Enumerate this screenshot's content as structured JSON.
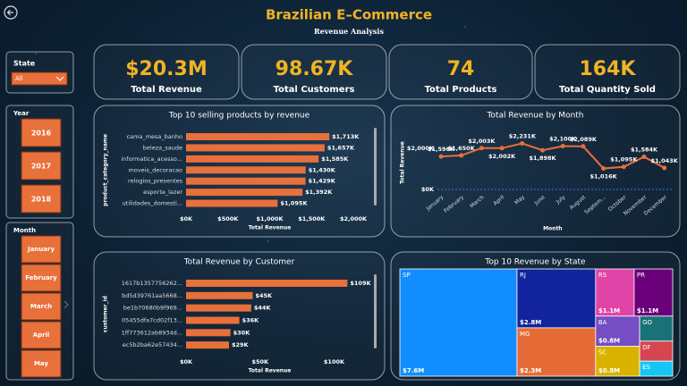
{
  "header": {
    "title": "Brazilian E–Commerce",
    "subtitle": "Revenue Analysis"
  },
  "kpis": [
    {
      "value": "$20.3M",
      "label": "Total Revenue"
    },
    {
      "value": "98.67K",
      "label": "Total Customers"
    },
    {
      "value": "74",
      "label": "Total Products"
    },
    {
      "value": "164K",
      "label": "Total Quantity Sold"
    }
  ],
  "slicers": {
    "state": {
      "label": "State",
      "selected": "All"
    },
    "year": {
      "label": "Year",
      "options": [
        "2016",
        "2017",
        "2018"
      ]
    },
    "month": {
      "label": "Month",
      "options": [
        "January",
        "February",
        "March",
        "April",
        "May"
      ]
    }
  },
  "chart_data": [
    {
      "type": "bar",
      "orientation": "horizontal",
      "title": "Top 10 selling products by revenue",
      "y_label": "product_category_name",
      "x_label": "Total Revenue",
      "color": "#e8703a",
      "categories": [
        "cama_mesa_banho",
        "beleza_saude",
        "informatica_acesso...",
        "moveis_decoracao",
        "relogios_presentes",
        "esporte_lazer",
        "utilidades_domesti..."
      ],
      "values": [
        1713000,
        1657000,
        1585000,
        1430000,
        1429000,
        1392000,
        1095000
      ],
      "value_labels": [
        "$1,713K",
        "$1,657K",
        "$1,585K",
        "$1,430K",
        "$1,429K",
        "$1,392K",
        "$1,095K"
      ],
      "xlim": [
        0,
        2000000
      ],
      "xticks": [
        {
          "value": 0,
          "label": "$0K"
        },
        {
          "value": 500000,
          "label": "$500K"
        },
        {
          "value": 1000000,
          "label": "$1,000K"
        },
        {
          "value": 1500000,
          "label": "$1,500K"
        },
        {
          "value": 2000000,
          "label": "$2,000K"
        }
      ]
    },
    {
      "type": "line",
      "title": "Total Revenue by Month",
      "y_label": "Total Revenue",
      "x_label": "Month",
      "color": "#e8703a",
      "categories": [
        "January",
        "February",
        "March",
        "April",
        "May",
        "June",
        "July",
        "August",
        "Septem...",
        "October",
        "November",
        "December"
      ],
      "values": [
        1596000,
        1650000,
        2003000,
        2002000,
        2231000,
        1898000,
        2100000,
        2089000,
        1016000,
        1095000,
        1584000,
        1043000
      ],
      "value_labels": [
        "$1,596K",
        "$1,650K",
        "$2,003K",
        "$2,002K",
        "$2,231K",
        "$1,898K",
        "$2,100K",
        "$2,089K",
        "$1,016K",
        "$1,095K",
        "$1,584K",
        "$1,043K"
      ],
      "ylim": [
        0,
        2600000
      ],
      "yticks": [
        {
          "value": 0,
          "label": "$0K"
        },
        {
          "value": 2000000,
          "label": "$2,000K"
        }
      ]
    },
    {
      "type": "bar",
      "orientation": "horizontal",
      "title": "Total Revenue by Customer",
      "y_label": "customer_id",
      "x_label": "Total Revenue",
      "color": "#e8703a",
      "categories": [
        "1617b1357756262...",
        "bd5d39761aa5668...",
        "be1b70680b9f969...",
        "05455dfa7cd02f13...",
        "1ff773612ab8934d...",
        "ec5b2ba62e57434..."
      ],
      "values": [
        109000,
        45000,
        44000,
        36000,
        30000,
        29000
      ],
      "value_labels": [
        "$109K",
        "$45K",
        "$44K",
        "$36K",
        "$30K",
        "$29K"
      ],
      "xlim": [
        0,
        113000
      ],
      "xticks": [
        {
          "value": 0,
          "label": "$0K"
        },
        {
          "value": 50000,
          "label": "$50K"
        },
        {
          "value": 100000,
          "label": "$100K"
        }
      ]
    },
    {
      "type": "treemap",
      "title": "Top 10 Revenue by State",
      "categories": [
        "SP",
        "RJ",
        "MG",
        "RS",
        "PR",
        "BA",
        "SC",
        "GO",
        "DF",
        "ES"
      ],
      "values": [
        7600000,
        2800000,
        2300000,
        1100000,
        1100000,
        800000,
        800000,
        500000,
        400000,
        300000
      ],
      "value_labels": [
        "$7.6M",
        "$2.8M",
        "$2.3M",
        "$1.1M",
        "$1.1M",
        "$0.8M",
        "$0.8M",
        null,
        null,
        null
      ],
      "colors": [
        "#118dff",
        "#12239e",
        "#e66c37",
        "#e044a7",
        "#6b007b",
        "#744ec2",
        "#d9b300",
        "#197278",
        "#d64550",
        "#15c6f4"
      ]
    }
  ]
}
